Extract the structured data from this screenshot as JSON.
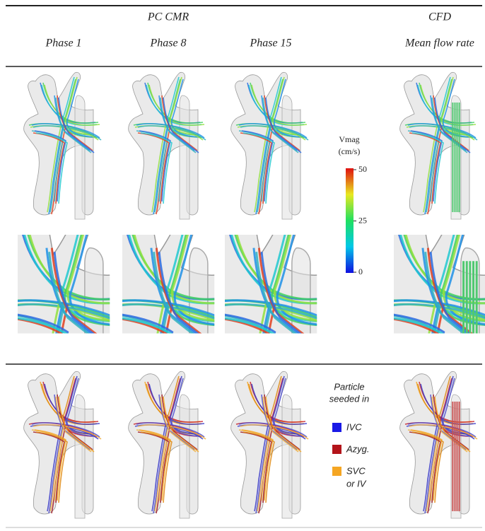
{
  "header": {
    "group_left": "PC CMR",
    "group_right": "CFD",
    "columns": [
      "Phase 1",
      "Phase 8",
      "Phase 15",
      "Mean flow rate"
    ]
  },
  "colorbar": {
    "title": "Vmag",
    "unit": "(cm/s)",
    "range": [
      0,
      50
    ],
    "ticks": [
      0,
      25,
      50
    ]
  },
  "legend": {
    "title": [
      "Particle",
      "seeded in"
    ],
    "items": [
      {
        "lines": [
          "IVC"
        ],
        "color": "#1a1ae6"
      },
      {
        "lines": [
          "Azyg."
        ],
        "color": "#b3141a"
      },
      {
        "lines": [
          "SVC",
          "or IV"
        ],
        "color": "#f5a623"
      }
    ]
  }
}
